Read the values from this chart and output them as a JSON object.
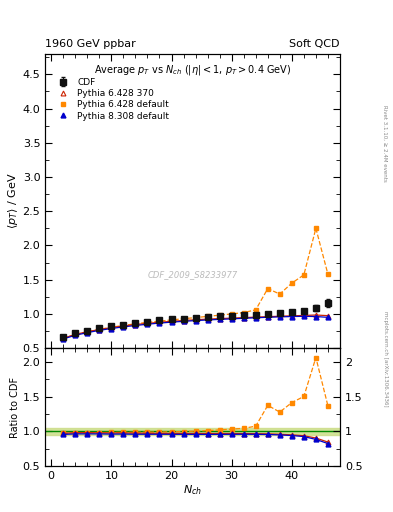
{
  "title_left": "1960 GeV ppbar",
  "title_right": "Soft QCD",
  "plot_title": "Average $p_T$ vs $N_{ch}$ ($|\\eta| < 1$, $p_T > 0.4$ GeV)",
  "xlabel": "$N_{ch}$",
  "ylabel_main": "$\\langle p_T \\rangle$ / GeV",
  "ylabel_ratio": "Ratio to CDF",
  "watermark": "CDF_2009_S8233977",
  "right_label_top": "Rivet 3.1.10, ≥ 2.4M events",
  "right_label_bot": "mcplots.cern.ch [arXiv:1306.3436]",
  "ylim_main": [
    0.5,
    4.8
  ],
  "ylim_ratio": [
    0.5,
    2.2
  ],
  "xlim": [
    -1,
    48
  ],
  "cdf_x": [
    2,
    4,
    6,
    8,
    10,
    12,
    14,
    16,
    18,
    20,
    22,
    24,
    26,
    28,
    30,
    32,
    34,
    36,
    38,
    40,
    42,
    44,
    46
  ],
  "cdf_y": [
    0.665,
    0.715,
    0.755,
    0.79,
    0.82,
    0.845,
    0.868,
    0.888,
    0.905,
    0.92,
    0.933,
    0.945,
    0.955,
    0.963,
    0.97,
    0.978,
    0.987,
    0.997,
    1.01,
    1.025,
    1.045,
    1.09,
    1.155
  ],
  "cdf_yerr": [
    0.018,
    0.016,
    0.015,
    0.014,
    0.013,
    0.013,
    0.013,
    0.012,
    0.012,
    0.012,
    0.012,
    0.012,
    0.012,
    0.012,
    0.012,
    0.013,
    0.013,
    0.014,
    0.016,
    0.02,
    0.028,
    0.04,
    0.06
  ],
  "py6_370_x": [
    2,
    4,
    6,
    8,
    10,
    12,
    14,
    16,
    18,
    20,
    22,
    24,
    26,
    28,
    30,
    32,
    34,
    36,
    38,
    40,
    42,
    44,
    46
  ],
  "py6_370_y": [
    0.645,
    0.7,
    0.74,
    0.772,
    0.8,
    0.824,
    0.845,
    0.862,
    0.878,
    0.892,
    0.904,
    0.915,
    0.924,
    0.932,
    0.939,
    0.946,
    0.953,
    0.96,
    0.966,
    0.972,
    0.978,
    0.984,
    0.975
  ],
  "py6_def_x": [
    2,
    4,
    6,
    8,
    10,
    12,
    14,
    16,
    18,
    20,
    22,
    24,
    26,
    28,
    30,
    32,
    34,
    36,
    38,
    40,
    42,
    44,
    46
  ],
  "py6_def_y": [
    0.645,
    0.7,
    0.74,
    0.775,
    0.806,
    0.832,
    0.856,
    0.877,
    0.895,
    0.913,
    0.93,
    0.947,
    0.964,
    0.982,
    1.0,
    1.02,
    1.06,
    1.37,
    1.29,
    1.45,
    1.57,
    2.25,
    1.58
  ],
  "py8_def_x": [
    2,
    4,
    6,
    8,
    10,
    12,
    14,
    16,
    18,
    20,
    22,
    24,
    26,
    28,
    30,
    32,
    34,
    36,
    38,
    40,
    42,
    44,
    46
  ],
  "py8_def_y": [
    0.635,
    0.688,
    0.727,
    0.76,
    0.787,
    0.811,
    0.831,
    0.85,
    0.866,
    0.88,
    0.892,
    0.903,
    0.912,
    0.92,
    0.928,
    0.936,
    0.944,
    0.951,
    0.957,
    0.962,
    0.965,
    0.962,
    0.95
  ],
  "colors": {
    "cdf": "#111111",
    "py6_370": "#cc2200",
    "py6_def": "#ff8800",
    "py8_def": "#0000cc"
  },
  "band_color": "#ccdd88",
  "band_halfwidth": 0.05,
  "yticks_main": [
    0.5,
    1.0,
    1.5,
    2.0,
    2.5,
    3.0,
    3.5,
    4.0,
    4.5
  ],
  "yticks_ratio": [
    0.5,
    1.0,
    1.5,
    2.0
  ]
}
